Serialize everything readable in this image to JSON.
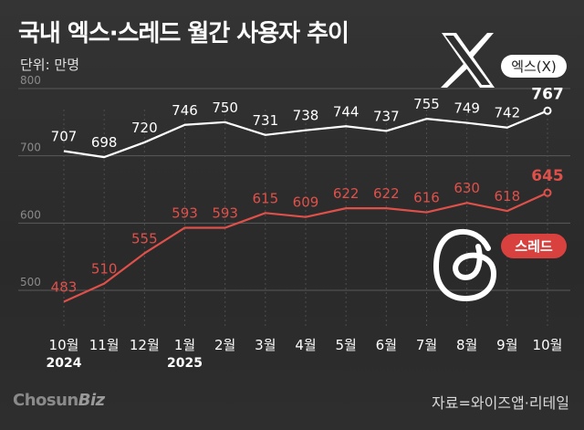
{
  "header": {
    "title": "국내 엑스·스레드 월간 사용자 추이",
    "unit": "단위: 만명"
  },
  "footer": {
    "logo_main": "Chosun",
    "logo_sub": "Biz",
    "source": "자료=와이즈앱·리테일"
  },
  "colors": {
    "x_series": "#ffffff",
    "threads_series": "#e0504a",
    "threads_label_bg": "#d9413f",
    "grid": "#5a5a5a"
  },
  "chart_data": {
    "type": "line",
    "x": [
      "10월",
      "11월",
      "12월",
      "1월",
      "2월",
      "3월",
      "4월",
      "5월",
      "6월",
      "7월",
      "8월",
      "9월",
      "10월"
    ],
    "year_labels": [
      "2024",
      "",
      "",
      "2025",
      "",
      "",
      "",
      "",
      "",
      "",
      "",
      "",
      ""
    ],
    "y_ticks": [
      500,
      600,
      700,
      800
    ],
    "ylim": [
      450,
      820
    ],
    "grid": true,
    "series": [
      {
        "name": "엑스(X)",
        "icon": "x-logo-icon",
        "values": [
          707,
          698,
          720,
          746,
          750,
          731,
          738,
          744,
          737,
          755,
          749,
          742,
          767
        ]
      },
      {
        "name": "스레드",
        "icon": "threads-logo-icon",
        "values": [
          483,
          510,
          555,
          593,
          593,
          615,
          609,
          622,
          622,
          616,
          630,
          618,
          645
        ]
      }
    ]
  }
}
